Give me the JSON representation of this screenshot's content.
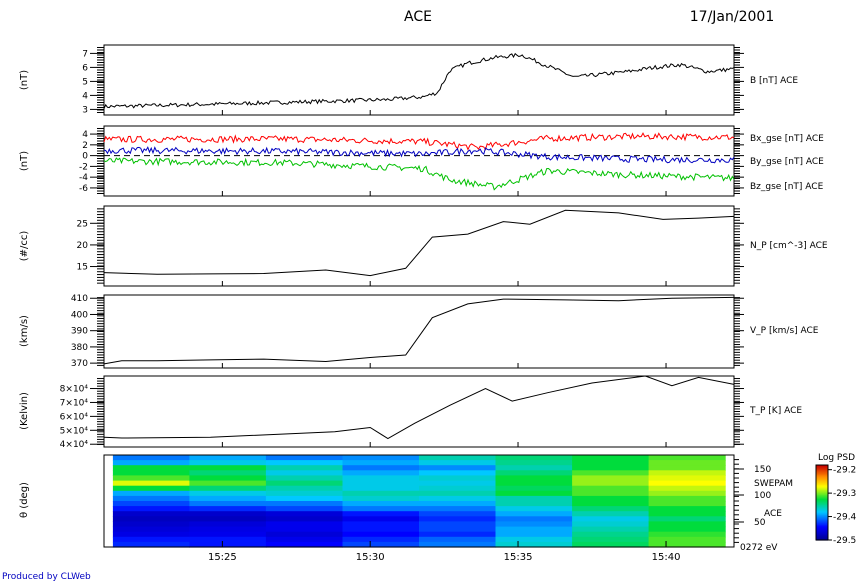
{
  "header": {
    "title": "ACE",
    "date": "17/Jan/2001"
  },
  "footer": {
    "text": "Produced by CLWeb"
  },
  "chart_data": [
    {
      "type": "line",
      "panel": "magnetic-field-magnitude",
      "ylabel": "(nT)",
      "ylim": [
        2.6,
        7.6
      ],
      "yticks": [
        "3",
        "4",
        "5",
        "6",
        "7"
      ],
      "series": [
        {
          "name": "B [nT] ACE",
          "color": "#000000",
          "x": [
            15.35,
            15.42,
            15.45,
            15.48,
            15.51,
            15.53,
            15.538,
            15.545,
            15.555,
            15.57,
            15.585,
            15.6,
            15.615,
            15.63,
            15.645,
            15.66,
            15.675,
            15.69,
            15.705
          ],
          "y": [
            3.2,
            3.4,
            3.5,
            3.6,
            3.7,
            3.9,
            4.2,
            5.8,
            6.3,
            6.7,
            6.9,
            6.1,
            5.3,
            5.5,
            5.7,
            6.0,
            6.2,
            5.7,
            5.9
          ]
        }
      ]
    },
    {
      "type": "line",
      "panel": "magnetic-field-components",
      "ylabel": "(nT)",
      "ylim": [
        -7.5,
        5.5
      ],
      "yticks": [
        "4",
        "2",
        "0",
        "-2",
        "-4",
        "-6"
      ],
      "series": [
        {
          "name": "Bx_gse [nT] ACE",
          "color": "#ff0000",
          "x": [
            15.35,
            15.45,
            15.53,
            15.56,
            15.6,
            15.65,
            15.705
          ],
          "y": [
            3.0,
            3.1,
            2.6,
            1.5,
            3.2,
            3.6,
            3.4
          ]
        },
        {
          "name": "By_gse [nT] ACE",
          "color": "#00c000",
          "x": [
            15.35,
            15.45,
            15.53,
            15.545,
            15.57,
            15.6,
            15.64,
            15.705
          ],
          "y": [
            -1.0,
            -1.3,
            -2.4,
            -4.5,
            -5.8,
            -2.8,
            -3.5,
            -4.2
          ]
        },
        {
          "name": "Bz_gse [nT] ACE",
          "color": "#0000c0",
          "x": [
            15.35,
            15.45,
            15.53,
            15.56,
            15.6,
            15.65,
            15.705
          ],
          "y": [
            1.0,
            0.8,
            0.3,
            1.0,
            -0.2,
            -0.7,
            -0.8
          ]
        }
      ]
    },
    {
      "type": "line",
      "panel": "proton-density",
      "ylabel": "(#/cc)",
      "ylim": [
        10.5,
        29
      ],
      "yticks": [
        "15",
        "20",
        "25"
      ],
      "series": [
        {
          "name": "N_P [cm^-3] ACE",
          "x": [
            15.35,
            15.38,
            15.41,
            15.44,
            15.475,
            15.5,
            15.52,
            15.535,
            15.555,
            15.575,
            15.59,
            15.61,
            15.64,
            15.665,
            15.685,
            15.705
          ],
          "y": [
            13.6,
            13.2,
            13.3,
            13.4,
            14.2,
            12.9,
            14.6,
            21.8,
            22.5,
            25.4,
            24.8,
            28.0,
            27.4,
            25.9,
            26.2,
            26.6
          ]
        }
      ]
    },
    {
      "type": "line",
      "panel": "proton-speed",
      "ylabel": "(km/s)",
      "ylim": [
        367,
        412
      ],
      "yticks": [
        "370",
        "380",
        "390",
        "400",
        "410"
      ],
      "series": [
        {
          "name": "V_P [km/s] ACE",
          "x": [
            15.35,
            15.36,
            15.38,
            15.41,
            15.44,
            15.475,
            15.5,
            15.52,
            15.535,
            15.555,
            15.575,
            15.61,
            15.64,
            15.67,
            15.705
          ],
          "y": [
            369.5,
            371.5,
            371.5,
            372.0,
            372.5,
            371.0,
            373.5,
            375.0,
            398.0,
            406.5,
            409.5,
            409.0,
            408.5,
            410.0,
            410.5
          ]
        }
      ]
    },
    {
      "type": "line",
      "panel": "proton-temperature",
      "ylabel": "(Kelvin)",
      "ylim": [
        38000,
        89000
      ],
      "yticks": [
        "4×10⁴",
        "5×10⁴",
        "6×10⁴",
        "7×10⁴",
        "8×10⁴"
      ],
      "series": [
        {
          "name": "T_P [K] ACE",
          "x": [
            15.35,
            15.36,
            15.41,
            15.48,
            15.5,
            15.51,
            15.525,
            15.545,
            15.565,
            15.58,
            15.6,
            15.625,
            15.655,
            15.67,
            15.685,
            15.705
          ],
          "y": [
            45000,
            44500,
            45000,
            49000,
            52000,
            44000,
            55000,
            68000,
            80000,
            71000,
            77000,
            84000,
            89000,
            82000,
            88000,
            83000
          ]
        }
      ]
    },
    {
      "type": "heatmap",
      "panel": "swepam-spectrogram",
      "ylabel": "θ (deg)",
      "yticks": [
        "150",
        "100",
        "50"
      ],
      "right_labels": [
        "SWEPAM",
        "ACE",
        "0272 eV"
      ],
      "colorbar": {
        "title": "Log PSD",
        "ticks": [
          "-29.2",
          "-29.3",
          "-29.4",
          "-29.5"
        ],
        "range": [
          -29.5,
          -29.18
        ]
      },
      "x_start": 15.355,
      "x_end": 15.7,
      "cells": [
        [
          0.3,
          0.35,
          0.55,
          0.55,
          0.6,
          0.7,
          0.55,
          0.35,
          0.3,
          0.25,
          0.2,
          0.1,
          0.08,
          0.1,
          0.12,
          0.14,
          0.2,
          0.22
        ],
        [
          0.35,
          0.4,
          0.55,
          0.5,
          0.55,
          0.6,
          0.5,
          0.4,
          0.35,
          0.3,
          0.22,
          0.1,
          0.08,
          0.12,
          0.14,
          0.15,
          0.2,
          0.2
        ],
        [
          0.3,
          0.38,
          0.45,
          0.4,
          0.45,
          0.5,
          0.45,
          0.42,
          0.38,
          0.3,
          0.25,
          0.12,
          0.1,
          0.15,
          0.15,
          0.12,
          0.15,
          0.18
        ],
        [
          0.32,
          0.35,
          0.3,
          0.35,
          0.4,
          0.4,
          0.4,
          0.45,
          0.42,
          0.35,
          0.3,
          0.2,
          0.15,
          0.2,
          0.2,
          0.18,
          0.22,
          0.25
        ],
        [
          0.45,
          0.4,
          0.32,
          0.38,
          0.42,
          0.4,
          0.42,
          0.45,
          0.4,
          0.35,
          0.3,
          0.25,
          0.22,
          0.25,
          0.25,
          0.22,
          0.28,
          0.3
        ],
        [
          0.5,
          0.48,
          0.45,
          0.5,
          0.55,
          0.55,
          0.52,
          0.55,
          0.45,
          0.45,
          0.4,
          0.35,
          0.3,
          0.32,
          0.35,
          0.35,
          0.4,
          0.42
        ],
        [
          0.55,
          0.55,
          0.55,
          0.6,
          0.65,
          0.65,
          0.6,
          0.6,
          0.55,
          0.55,
          0.5,
          0.45,
          0.4,
          0.42,
          0.45,
          0.48,
          0.5,
          0.52
        ],
        [
          0.6,
          0.62,
          0.62,
          0.68,
          0.7,
          0.72,
          0.68,
          0.65,
          0.6,
          0.6,
          0.55,
          0.55,
          0.5,
          0.55,
          0.55,
          0.58,
          0.6,
          0.6
        ]
      ]
    }
  ],
  "x_axis": {
    "tick_labels": [
      "15:25",
      "15:30",
      "15:35",
      "15:40"
    ],
    "tick_values": [
      15.4167,
      15.5,
      15.5833,
      15.6667
    ],
    "range": [
      15.35,
      15.705
    ]
  }
}
